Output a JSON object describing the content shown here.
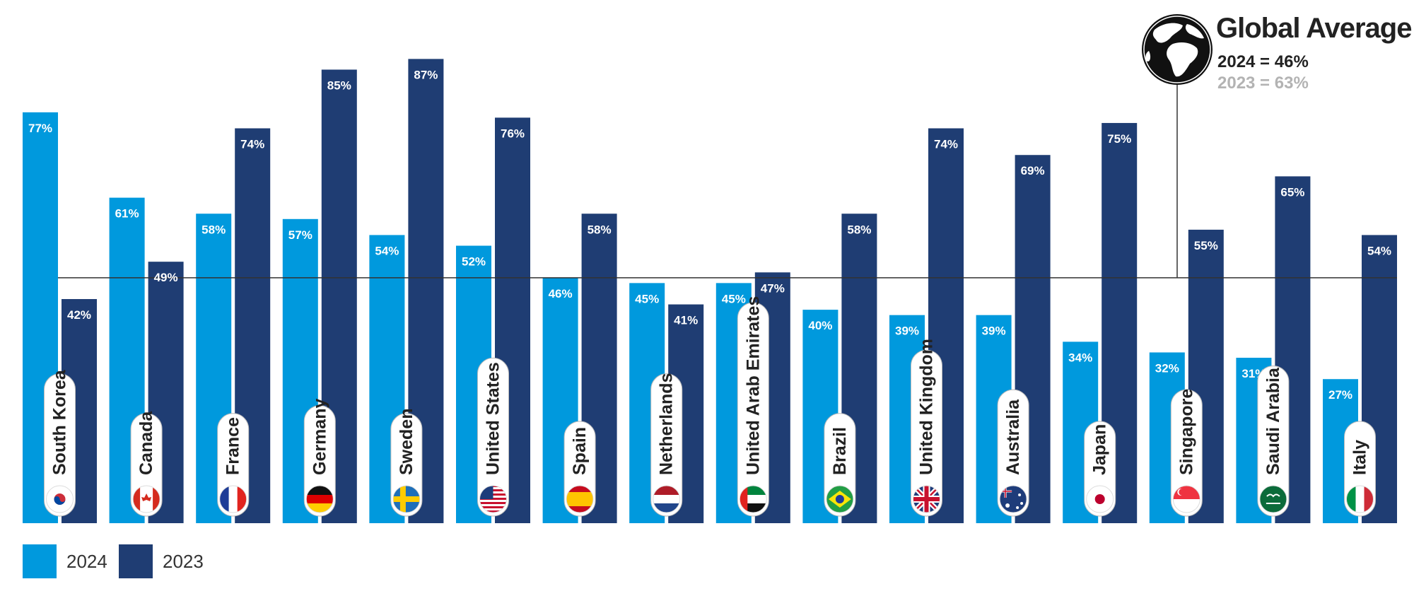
{
  "chart_data": {
    "type": "bar",
    "categories": [
      "South Korea",
      "Canada",
      "France",
      "Germany",
      "Sweden",
      "United States",
      "Spain",
      "Netherlands",
      "United Arab Emirates",
      "Brazil",
      "United Kingdom",
      "Australia",
      "Japan",
      "Singapore",
      "Saudi Arabia",
      "Italy"
    ],
    "series": [
      {
        "name": "2024",
        "color": "#0099dd",
        "values": [
          77,
          61,
          58,
          57,
          54,
          52,
          46,
          45,
          45,
          40,
          39,
          39,
          34,
          32,
          31,
          27
        ],
        "labels": [
          "77%",
          "61%",
          "58%",
          "57%",
          "54%",
          "52%",
          "46%",
          "45%",
          "45%",
          "40%",
          "39%",
          "39%",
          "34%",
          "32%",
          "31%",
          "27%"
        ]
      },
      {
        "name": "2023",
        "color": "#1f3d73",
        "values": [
          42,
          49,
          74,
          85,
          87,
          76,
          58,
          41,
          47,
          58,
          74,
          69,
          75,
          55,
          65,
          54
        ],
        "labels": [
          "42%",
          "49%",
          "74%",
          "85%",
          "87%",
          "76%",
          "58%",
          "41%",
          "47%",
          "58%",
          "74%",
          "69%",
          "75%",
          "55%",
          "65%",
          "54%"
        ]
      }
    ],
    "ylim": [
      0,
      95
    ],
    "reference_line": 46,
    "flag_icons": [
      "south-korea-flag-icon",
      "canada-flag-icon",
      "france-flag-icon",
      "germany-flag-icon",
      "sweden-flag-icon",
      "united-states-flag-icon",
      "spain-flag-icon",
      "netherlands-flag-icon",
      "uae-flag-icon",
      "brazil-flag-icon",
      "united-kingdom-flag-icon",
      "australia-flag-icon",
      "japan-flag-icon",
      "singapore-flag-icon",
      "saudi-arabia-flag-icon",
      "italy-flag-icon"
    ],
    "legend": {
      "placement": "bottom-left"
    }
  },
  "global_average": {
    "title": "Global Average",
    "line_2024": "2024 = 46%",
    "line_2023": "2023 = 63%",
    "icon": "globe-icon"
  },
  "legend": {
    "label_2024": "2024",
    "label_2023": "2023"
  }
}
